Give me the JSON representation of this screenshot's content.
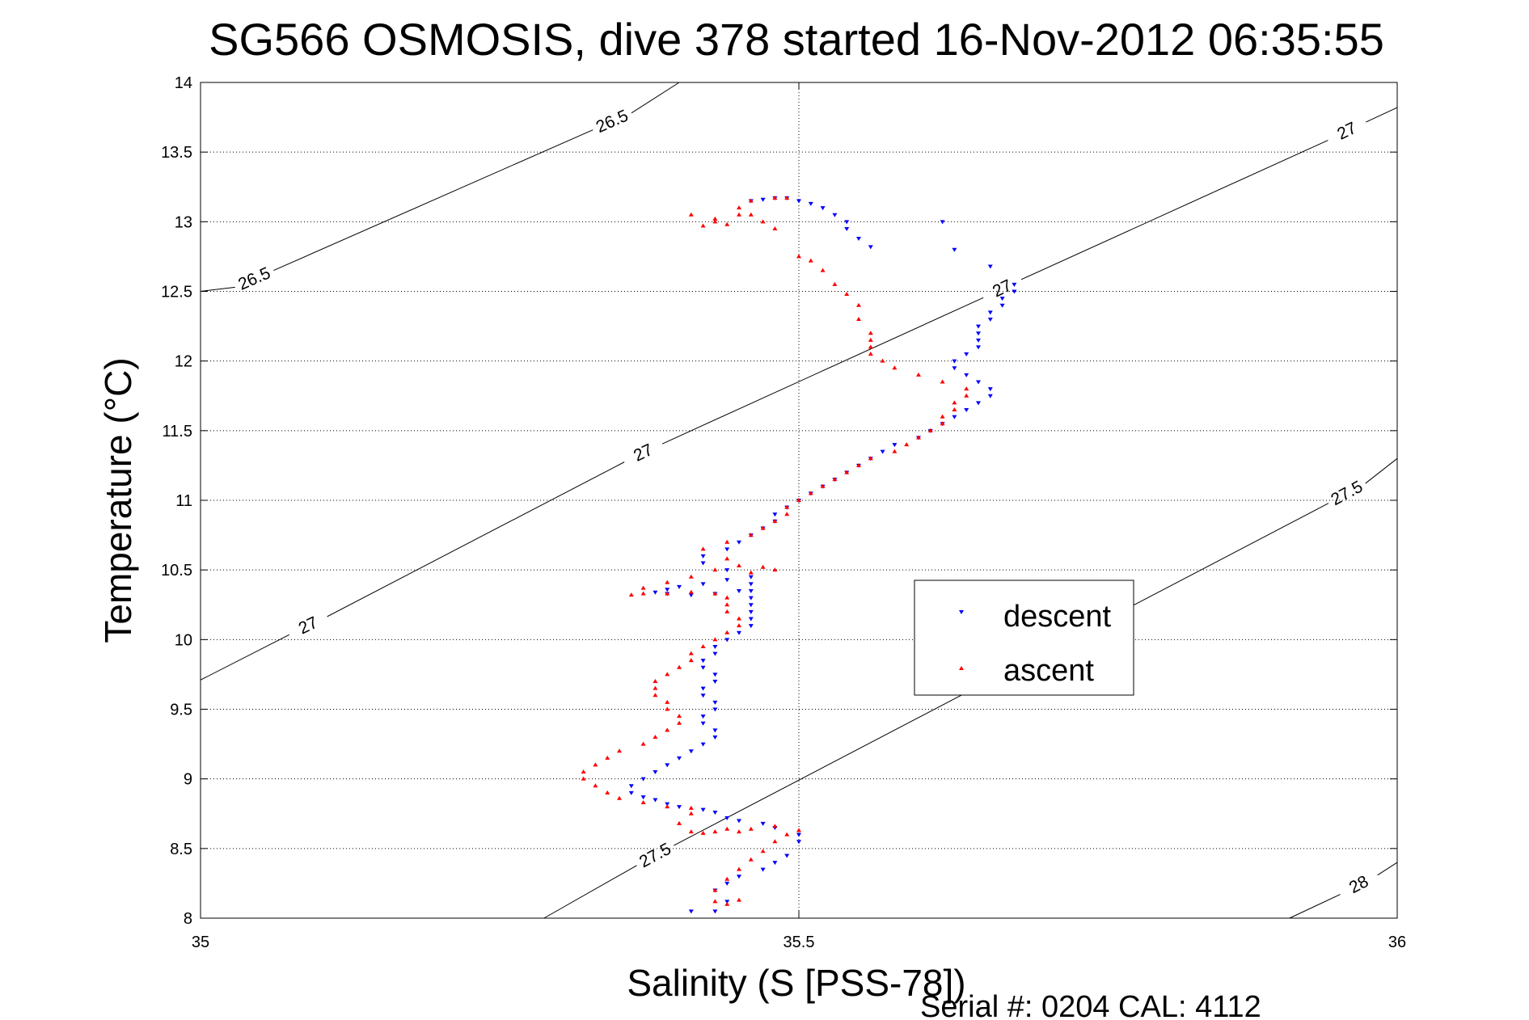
{
  "chart_data": {
    "type": "scatter",
    "title": "SG566 OSMOSIS, dive 378 started 16-Nov-2012 06:35:55",
    "xlabel": "Salinity (S [PSS-78])",
    "ylabel": "Temperature (°C)",
    "xlim": [
      35,
      36
    ],
    "ylim": [
      8,
      14
    ],
    "x_ticks": [
      35,
      35.5,
      36
    ],
    "x_tick_labels": [
      "35",
      "35.5",
      "36"
    ],
    "y_ticks": [
      8,
      8.5,
      9,
      9.5,
      10,
      10.5,
      11,
      11.5,
      12,
      12.5,
      13,
      13.5,
      14
    ],
    "y_tick_labels": [
      "8",
      "8.5",
      "9",
      "9.5",
      "10",
      "10.5",
      "11",
      "11.5",
      "12",
      "12.5",
      "13",
      "13.5",
      "14"
    ],
    "grid": true,
    "legend_position": "center-right",
    "footer": "Serial #: 0204  CAL: 4112",
    "series": [
      {
        "name": "descent",
        "color": "#0000ff",
        "marker": "triangle-down",
        "points": [
          [
            35.41,
            8.05
          ],
          [
            35.43,
            8.05
          ],
          [
            35.44,
            8.12
          ],
          [
            35.43,
            8.2
          ],
          [
            35.44,
            8.25
          ],
          [
            35.45,
            8.3
          ],
          [
            35.47,
            8.35
          ],
          [
            35.48,
            8.4
          ],
          [
            35.49,
            8.45
          ],
          [
            35.5,
            8.55
          ],
          [
            35.5,
            8.6
          ],
          [
            35.48,
            8.65
          ],
          [
            35.47,
            8.68
          ],
          [
            35.45,
            8.7
          ],
          [
            35.44,
            8.72
          ],
          [
            35.43,
            8.76
          ],
          [
            35.42,
            8.78
          ],
          [
            35.4,
            8.8
          ],
          [
            35.39,
            8.82
          ],
          [
            35.38,
            8.85
          ],
          [
            35.37,
            8.87
          ],
          [
            35.36,
            8.9
          ],
          [
            35.36,
            8.95
          ],
          [
            35.37,
            9.0
          ],
          [
            35.38,
            9.05
          ],
          [
            35.39,
            9.1
          ],
          [
            35.4,
            9.15
          ],
          [
            35.41,
            9.2
          ],
          [
            35.42,
            9.25
          ],
          [
            35.43,
            9.3
          ],
          [
            35.43,
            9.35
          ],
          [
            35.42,
            9.4
          ],
          [
            35.42,
            9.45
          ],
          [
            35.43,
            9.5
          ],
          [
            35.43,
            9.55
          ],
          [
            35.42,
            9.6
          ],
          [
            35.42,
            9.65
          ],
          [
            35.43,
            9.7
          ],
          [
            35.43,
            9.75
          ],
          [
            35.42,
            9.8
          ],
          [
            35.42,
            9.85
          ],
          [
            35.43,
            9.9
          ],
          [
            35.43,
            9.95
          ],
          [
            35.44,
            10.0
          ],
          [
            35.45,
            10.05
          ],
          [
            35.46,
            10.1
          ],
          [
            35.46,
            10.15
          ],
          [
            35.46,
            10.2
          ],
          [
            35.46,
            10.25
          ],
          [
            35.46,
            10.3
          ],
          [
            35.46,
            10.35
          ],
          [
            35.46,
            10.4
          ],
          [
            35.44,
            10.43
          ],
          [
            35.42,
            10.4
          ],
          [
            35.4,
            10.38
          ],
          [
            35.39,
            10.36
          ],
          [
            35.38,
            10.34
          ],
          [
            35.39,
            10.33
          ],
          [
            35.41,
            10.32
          ],
          [
            35.43,
            10.33
          ],
          [
            35.45,
            10.35
          ],
          [
            35.46,
            10.45
          ],
          [
            35.44,
            10.5
          ],
          [
            35.42,
            10.55
          ],
          [
            35.42,
            10.6
          ],
          [
            35.44,
            10.65
          ],
          [
            35.45,
            10.7
          ],
          [
            35.46,
            10.75
          ],
          [
            35.47,
            10.8
          ],
          [
            35.48,
            10.85
          ],
          [
            35.48,
            10.9
          ],
          [
            35.49,
            10.95
          ],
          [
            35.5,
            11.0
          ],
          [
            35.51,
            11.05
          ],
          [
            35.52,
            11.1
          ],
          [
            35.53,
            11.15
          ],
          [
            35.54,
            11.2
          ],
          [
            35.55,
            11.25
          ],
          [
            35.56,
            11.3
          ],
          [
            35.57,
            11.35
          ],
          [
            35.58,
            11.4
          ],
          [
            35.6,
            11.45
          ],
          [
            35.61,
            11.5
          ],
          [
            35.62,
            11.55
          ],
          [
            35.63,
            11.6
          ],
          [
            35.64,
            11.65
          ],
          [
            35.65,
            11.7
          ],
          [
            35.66,
            11.75
          ],
          [
            35.66,
            11.8
          ],
          [
            35.65,
            11.85
          ],
          [
            35.64,
            11.9
          ],
          [
            35.63,
            11.95
          ],
          [
            35.63,
            12.0
          ],
          [
            35.64,
            12.05
          ],
          [
            35.65,
            12.1
          ],
          [
            35.65,
            12.15
          ],
          [
            35.65,
            12.2
          ],
          [
            35.65,
            12.25
          ],
          [
            35.66,
            12.3
          ],
          [
            35.66,
            12.35
          ],
          [
            35.67,
            12.4
          ],
          [
            35.67,
            12.45
          ],
          [
            35.68,
            12.5
          ],
          [
            35.68,
            12.55
          ],
          [
            35.66,
            12.68
          ],
          [
            35.63,
            12.8
          ],
          [
            35.62,
            13.0
          ],
          [
            35.56,
            12.82
          ],
          [
            35.55,
            12.88
          ],
          [
            35.54,
            12.95
          ],
          [
            35.54,
            13.0
          ],
          [
            35.53,
            13.05
          ],
          [
            35.52,
            13.1
          ],
          [
            35.51,
            13.13
          ],
          [
            35.5,
            13.15
          ],
          [
            35.49,
            13.17
          ],
          [
            35.48,
            13.17
          ],
          [
            35.47,
            13.16
          ],
          [
            35.46,
            13.15
          ]
        ]
      },
      {
        "name": "ascent",
        "color": "#ff0000",
        "marker": "triangle-up",
        "points": [
          [
            35.43,
            8.12
          ],
          [
            35.44,
            8.1
          ],
          [
            35.45,
            8.13
          ],
          [
            35.43,
            8.2
          ],
          [
            35.44,
            8.28
          ],
          [
            35.45,
            8.35
          ],
          [
            35.46,
            8.42
          ],
          [
            35.47,
            8.48
          ],
          [
            35.48,
            8.55
          ],
          [
            35.49,
            8.6
          ],
          [
            35.5,
            8.63
          ],
          [
            35.48,
            8.66
          ],
          [
            35.46,
            8.64
          ],
          [
            35.45,
            8.62
          ],
          [
            35.44,
            8.64
          ],
          [
            35.43,
            8.62
          ],
          [
            35.42,
            8.61
          ],
          [
            35.41,
            8.62
          ],
          [
            35.4,
            8.68
          ],
          [
            35.41,
            8.75
          ],
          [
            35.41,
            8.79
          ],
          [
            35.39,
            8.8
          ],
          [
            35.37,
            8.83
          ],
          [
            35.35,
            8.86
          ],
          [
            35.34,
            8.9
          ],
          [
            35.33,
            8.95
          ],
          [
            35.32,
            9.0
          ],
          [
            35.32,
            9.05
          ],
          [
            35.33,
            9.1
          ],
          [
            35.34,
            9.15
          ],
          [
            35.35,
            9.2
          ],
          [
            35.37,
            9.25
          ],
          [
            35.38,
            9.3
          ],
          [
            35.39,
            9.35
          ],
          [
            35.4,
            9.4
          ],
          [
            35.4,
            9.45
          ],
          [
            35.39,
            9.5
          ],
          [
            35.39,
            9.55
          ],
          [
            35.38,
            9.6
          ],
          [
            35.38,
            9.65
          ],
          [
            35.38,
            9.7
          ],
          [
            35.39,
            9.75
          ],
          [
            35.4,
            9.8
          ],
          [
            35.41,
            9.85
          ],
          [
            35.41,
            9.9
          ],
          [
            35.42,
            9.95
          ],
          [
            35.43,
            10.0
          ],
          [
            35.44,
            10.05
          ],
          [
            35.45,
            10.1
          ],
          [
            35.45,
            10.15
          ],
          [
            35.44,
            10.2
          ],
          [
            35.44,
            10.25
          ],
          [
            35.44,
            10.3
          ],
          [
            35.43,
            10.33
          ],
          [
            35.41,
            10.34
          ],
          [
            35.39,
            10.33
          ],
          [
            35.37,
            10.33
          ],
          [
            35.36,
            10.32
          ],
          [
            35.37,
            10.37
          ],
          [
            35.39,
            10.41
          ],
          [
            35.41,
            10.45
          ],
          [
            35.43,
            10.5
          ],
          [
            35.45,
            10.53
          ],
          [
            35.47,
            10.52
          ],
          [
            35.48,
            10.5
          ],
          [
            35.46,
            10.48
          ],
          [
            35.44,
            10.58
          ],
          [
            35.42,
            10.65
          ],
          [
            35.44,
            10.7
          ],
          [
            35.46,
            10.75
          ],
          [
            35.47,
            10.8
          ],
          [
            35.48,
            10.85
          ],
          [
            35.49,
            10.9
          ],
          [
            35.49,
            10.95
          ],
          [
            35.5,
            11.0
          ],
          [
            35.51,
            11.05
          ],
          [
            35.52,
            11.1
          ],
          [
            35.53,
            11.15
          ],
          [
            35.54,
            11.2
          ],
          [
            35.55,
            11.25
          ],
          [
            35.56,
            11.3
          ],
          [
            35.58,
            11.35
          ],
          [
            35.59,
            11.4
          ],
          [
            35.6,
            11.45
          ],
          [
            35.61,
            11.5
          ],
          [
            35.62,
            11.55
          ],
          [
            35.62,
            11.6
          ],
          [
            35.63,
            11.65
          ],
          [
            35.63,
            11.7
          ],
          [
            35.64,
            11.75
          ],
          [
            35.64,
            11.8
          ],
          [
            35.62,
            11.85
          ],
          [
            35.6,
            11.9
          ],
          [
            35.58,
            11.95
          ],
          [
            35.57,
            12.0
          ],
          [
            35.56,
            12.05
          ],
          [
            35.56,
            12.1
          ],
          [
            35.56,
            12.15
          ],
          [
            35.56,
            12.2
          ],
          [
            35.55,
            12.3
          ],
          [
            35.55,
            12.4
          ],
          [
            35.54,
            12.48
          ],
          [
            35.53,
            12.55
          ],
          [
            35.52,
            12.65
          ],
          [
            35.51,
            12.72
          ],
          [
            35.5,
            12.75
          ],
          [
            35.48,
            12.95
          ],
          [
            35.47,
            13.0
          ],
          [
            35.46,
            13.05
          ],
          [
            35.45,
            13.1
          ],
          [
            35.46,
            13.15
          ],
          [
            35.48,
            13.17
          ],
          [
            35.49,
            13.17
          ],
          [
            35.45,
            13.05
          ],
          [
            35.43,
            13.0
          ],
          [
            35.42,
            12.97
          ],
          [
            35.43,
            13.02
          ],
          [
            35.41,
            13.05
          ],
          [
            35.44,
            12.98
          ]
        ]
      }
    ],
    "density_contours": [
      {
        "label": "26.5",
        "line": [
          [
            35.0,
            12.5
          ],
          [
            35.4,
            14.0
          ]
        ],
        "label_positions": [
          [
            35.344,
            13.72
          ],
          [
            35.045,
            12.59
          ]
        ]
      },
      {
        "label": "27",
        "line": [
          [
            35.0,
            9.71
          ],
          [
            36.0,
            13.82
          ]
        ],
        "label_positions": [
          [
            35.958,
            13.65
          ],
          [
            35.67,
            12.52
          ],
          [
            35.37,
            11.34
          ],
          [
            35.09,
            10.1
          ]
        ]
      },
      {
        "label": "27.5",
        "line": [
          [
            35.287,
            8.0
          ],
          [
            36.0,
            11.3
          ]
        ],
        "label_positions": [
          [
            35.38,
            8.45
          ],
          [
            35.958,
            11.05
          ]
        ]
      },
      {
        "label": "28",
        "line": [
          [
            35.91,
            8.0
          ],
          [
            36.0,
            8.4
          ]
        ],
        "label_positions": [
          [
            35.968,
            8.24
          ]
        ]
      }
    ]
  }
}
